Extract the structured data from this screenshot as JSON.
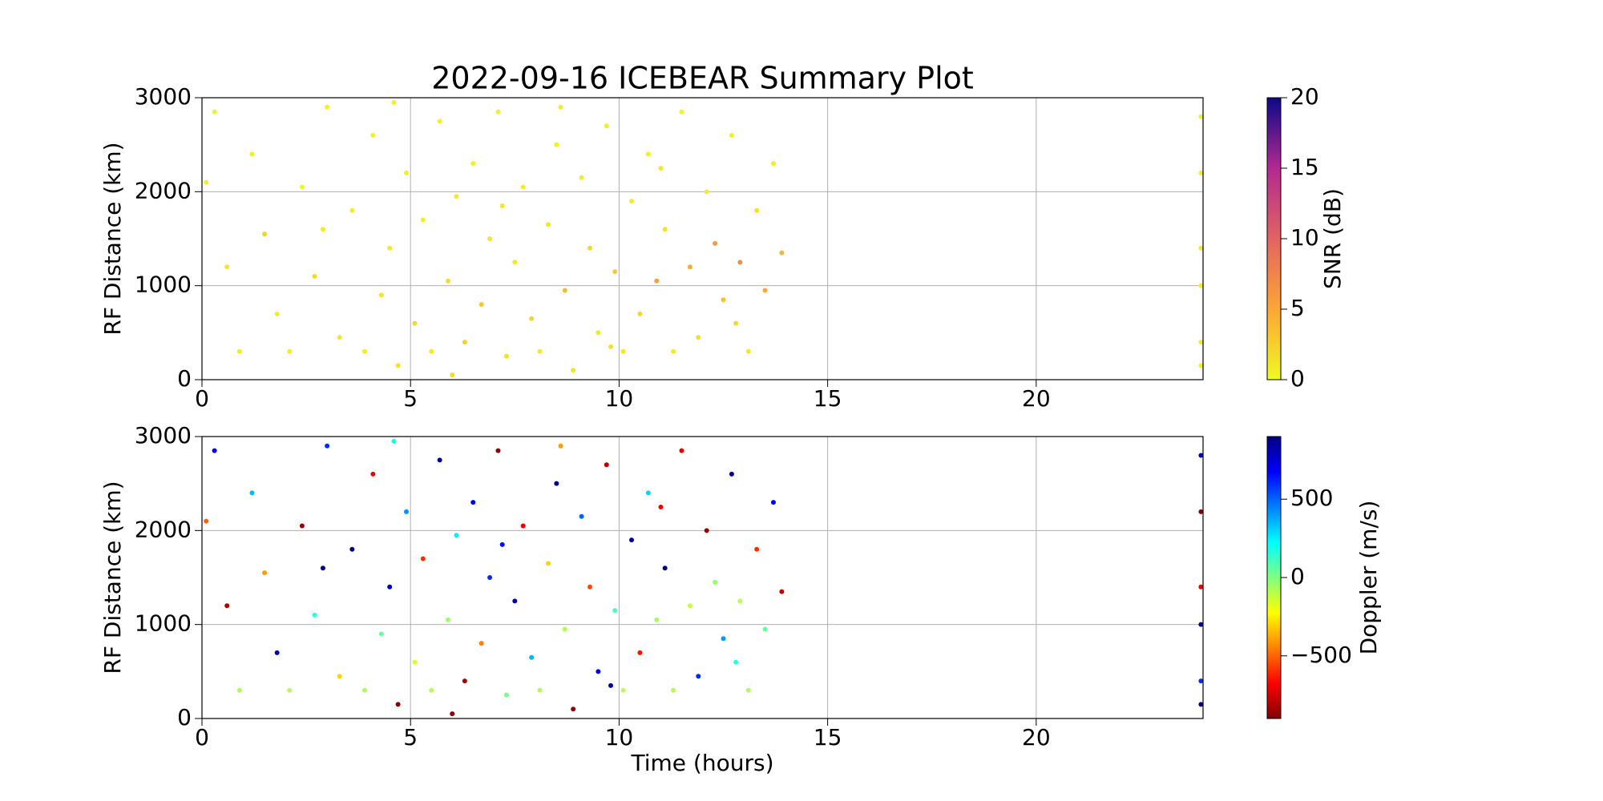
{
  "chart_data": [
    {
      "type": "scatter",
      "title": "2022-09-16 ICEBEAR Summary Plot",
      "ylabel": "RF Distance (km)",
      "xlim": [
        0,
        24
      ],
      "xticks": [
        0,
        5,
        10,
        15,
        20
      ],
      "ylim": [
        0,
        3000
      ],
      "yticks": [
        0,
        1000,
        2000,
        3000
      ],
      "grid": true,
      "colorbar": {
        "label": "SNR (dB)",
        "lim": [
          0,
          20
        ],
        "ticks": [
          0,
          5,
          10,
          15,
          20
        ],
        "colors": [
          "#f0f921",
          "#fca636",
          "#e16462",
          "#b12a90",
          "#0d0887"
        ]
      },
      "series": [
        {
          "x": [
            0.3,
            0.6,
            0.9,
            1.2,
            1.5,
            1.8,
            2.1,
            2.4,
            2.7,
            3.0,
            3.3,
            3.6,
            3.9,
            4.1,
            4.3,
            4.5,
            4.7,
            4.9,
            5.1,
            5.3,
            5.5,
            5.7,
            5.9,
            6.1,
            6.3,
            6.5,
            6.7,
            6.9,
            7.1,
            7.3,
            7.5,
            7.7,
            7.9,
            8.1,
            8.3,
            8.5,
            8.7,
            8.9,
            9.1,
            9.3,
            9.5,
            9.7,
            9.9,
            10.1,
            10.3,
            10.5,
            10.7,
            10.9,
            11.1,
            11.3,
            11.5,
            11.7,
            11.9,
            12.1,
            12.3,
            12.5,
            12.7,
            12.9,
            13.1,
            13.3,
            13.5,
            13.7,
            13.9,
            0.1,
            2.9,
            4.6,
            6.0,
            7.2,
            8.6,
            9.8,
            11.0,
            12.8,
            23.95,
            23.95,
            23.95,
            23.95,
            23.95,
            23.95
          ],
          "y": [
            2850,
            1200,
            300,
            2400,
            1550,
            700,
            300,
            2050,
            1100,
            2900,
            450,
            1800,
            300,
            2600,
            900,
            1400,
            150,
            2200,
            600,
            1700,
            300,
            2750,
            1050,
            1950,
            400,
            2300,
            800,
            1500,
            2850,
            250,
            1250,
            2050,
            650,
            300,
            1650,
            2500,
            950,
            100,
            2150,
            1400,
            500,
            2700,
            1150,
            300,
            1900,
            700,
            2400,
            1050,
            1600,
            300,
            2850,
            1200,
            450,
            2000,
            1450,
            850,
            2600,
            1250,
            300,
            1800,
            950,
            2300,
            1350,
            2100,
            1600,
            2950,
            50,
            1850,
            2900,
            350,
            2250,
            600,
            2800,
            2200,
            1400,
            1000,
            400,
            150
          ],
          "c": [
            0.5,
            1.0,
            0.8,
            0.4,
            2.5,
            0.6,
            0.7,
            0.3,
            1.8,
            0.5,
            0.9,
            0.6,
            0.7,
            0.4,
            1.2,
            0.8,
            1.5,
            0.5,
            2.0,
            0.6,
            0.9,
            0.3,
            1.6,
            0.7,
            2.4,
            0.4,
            3.0,
            0.9,
            0.5,
            1.3,
            1.0,
            0.6,
            2.2,
            0.8,
            1.1,
            0.5,
            4.0,
            1.4,
            0.6,
            1.9,
            1.0,
            0.4,
            2.8,
            0.9,
            0.7,
            2.1,
            0.5,
            5.5,
            1.2,
            0.8,
            0.4,
            4.8,
            1.6,
            0.7,
            6.0,
            3.5,
            0.5,
            7.0,
            1.0,
            1.3,
            5.0,
            0.6,
            4.2,
            0.5,
            0.8,
            0.4,
            1.8,
            1.1,
            0.6,
            1.4,
            0.9,
            2.0,
            0.5,
            0.7,
            1.0,
            0.6,
            0.8,
            0.5
          ]
        }
      ]
    },
    {
      "type": "scatter",
      "ylabel": "RF Distance (km)",
      "xlabel": "Time (hours)",
      "xlim": [
        0,
        24
      ],
      "xticks": [
        0,
        5,
        10,
        15,
        20
      ],
      "ylim": [
        0,
        3000
      ],
      "yticks": [
        0,
        1000,
        2000,
        3000
      ],
      "grid": true,
      "colorbar": {
        "label": "Doppler (m/s)",
        "lim": [
          -900,
          900
        ],
        "ticks": [
          {
            "value": -500,
            "label": "−500"
          },
          0,
          500
        ],
        "colors": [
          "#800000",
          "#ff0000",
          "#ff8000",
          "#ffff00",
          "#80ff80",
          "#00ffff",
          "#0080ff",
          "#0000ff",
          "#000080"
        ]
      },
      "series": [
        {
          "x": [
            0.3,
            0.6,
            0.9,
            1.2,
            1.5,
            1.8,
            2.1,
            2.4,
            2.7,
            3.0,
            3.3,
            3.6,
            3.9,
            4.1,
            4.3,
            4.5,
            4.7,
            4.9,
            5.1,
            5.3,
            5.5,
            5.7,
            5.9,
            6.1,
            6.3,
            6.5,
            6.7,
            6.9,
            7.1,
            7.3,
            7.5,
            7.7,
            7.9,
            8.1,
            8.3,
            8.5,
            8.7,
            8.9,
            9.1,
            9.3,
            9.5,
            9.7,
            9.9,
            10.1,
            10.3,
            10.5,
            10.7,
            10.9,
            11.1,
            11.3,
            11.5,
            11.7,
            11.9,
            12.1,
            12.3,
            12.5,
            12.7,
            12.9,
            13.1,
            13.3,
            13.5,
            13.7,
            13.9,
            0.1,
            2.9,
            4.6,
            6.0,
            7.2,
            8.6,
            9.8,
            11.0,
            12.8,
            23.95,
            23.95,
            23.95,
            23.95,
            23.95,
            23.95
          ],
          "y": [
            2850,
            1200,
            300,
            2400,
            1550,
            700,
            300,
            2050,
            1100,
            2900,
            450,
            1800,
            300,
            2600,
            900,
            1400,
            150,
            2200,
            600,
            1700,
            300,
            2750,
            1050,
            1950,
            400,
            2300,
            800,
            1500,
            2850,
            250,
            1250,
            2050,
            650,
            300,
            1650,
            2500,
            950,
            100,
            2150,
            1400,
            500,
            2700,
            1150,
            300,
            1900,
            700,
            2400,
            1050,
            1600,
            300,
            2850,
            1200,
            450,
            2000,
            1450,
            850,
            2600,
            1250,
            300,
            1800,
            950,
            2300,
            1350,
            2100,
            1600,
            2950,
            50,
            1850,
            2900,
            350,
            2250,
            600,
            2800,
            2200,
            1400,
            1000,
            400,
            150
          ],
          "c": [
            700,
            -820,
            -80,
            350,
            -400,
            820,
            -90,
            -850,
            150,
            600,
            -300,
            880,
            -70,
            -700,
            40,
            780,
            -880,
            420,
            -150,
            -600,
            -100,
            850,
            -50,
            250,
            -820,
            700,
            -450,
            600,
            -880,
            20,
            820,
            -700,
            350,
            -90,
            -300,
            880,
            -80,
            -860,
            500,
            -550,
            750,
            -800,
            100,
            -100,
            840,
            -650,
            300,
            -60,
            880,
            -90,
            -720,
            -120,
            600,
            -850,
            -30,
            400,
            820,
            -100,
            -80,
            -600,
            50,
            700,
            -780,
            -500,
            880,
            200,
            -880,
            650,
            -400,
            860,
            -700,
            150,
            800,
            -880,
            -700,
            850,
            600,
            880
          ]
        }
      ]
    }
  ]
}
